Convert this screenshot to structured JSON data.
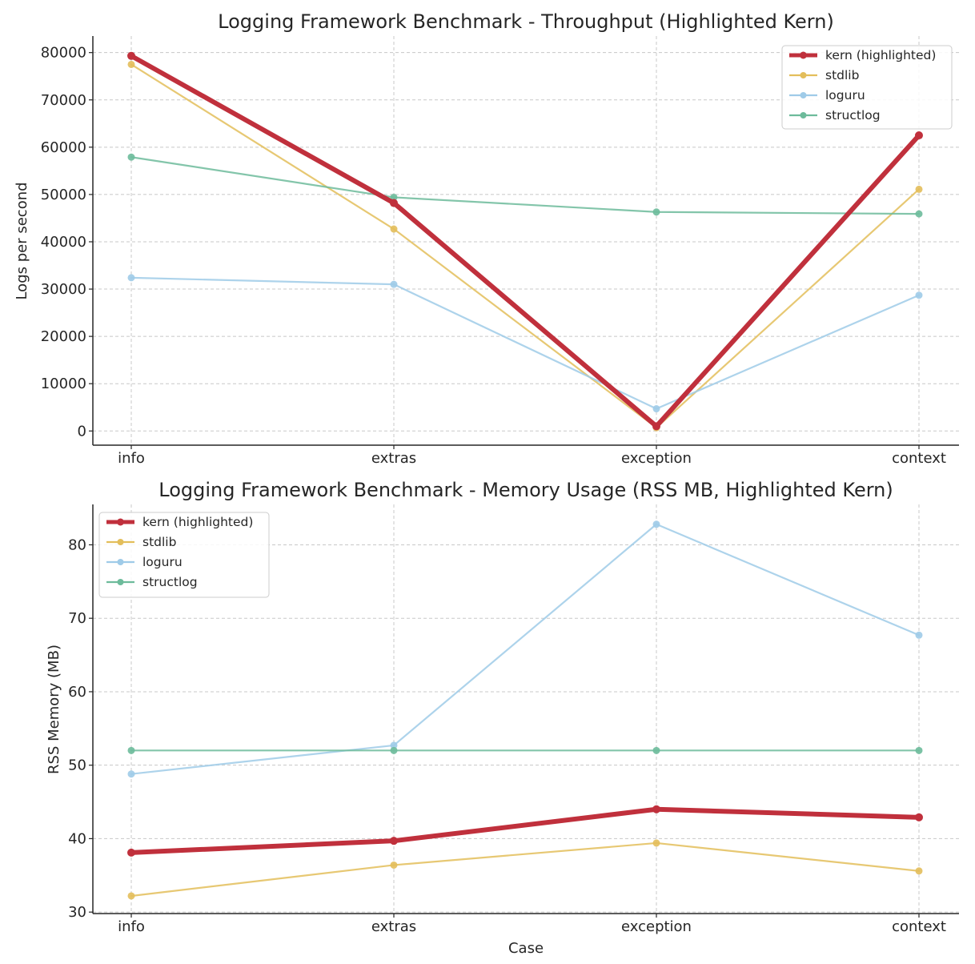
{
  "chart_data": [
    {
      "type": "line",
      "title": "Logging Framework Benchmark - Throughput (Highlighted Kern)",
      "xlabel": "",
      "ylabel": "Logs per second",
      "categories": [
        "info",
        "extras",
        "exception",
        "context"
      ],
      "ylim": [
        -3000,
        83500
      ],
      "yticks": [
        0,
        10000,
        20000,
        30000,
        40000,
        50000,
        60000,
        70000,
        80000
      ],
      "grid": true,
      "legend_position": "upper right",
      "series": [
        {
          "name": "kern (highlighted)",
          "values": [
            79300,
            48200,
            1000,
            62500
          ],
          "color": "#C0303C",
          "highlight": true
        },
        {
          "name": "stdlib",
          "values": [
            77500,
            42700,
            700,
            51100
          ],
          "color": "#E3BE5B",
          "highlight": false
        },
        {
          "name": "loguru",
          "values": [
            32400,
            31000,
            4700,
            28700
          ],
          "color": "#9FCBE8",
          "highlight": false
        },
        {
          "name": "structlog",
          "values": [
            57900,
            49400,
            46300,
            45900
          ],
          "color": "#6DBB9B",
          "highlight": false
        }
      ]
    },
    {
      "type": "line",
      "title": "Logging Framework Benchmark - Memory Usage (RSS MB, Highlighted Kern)",
      "xlabel": "Case",
      "ylabel": "RSS Memory (MB)",
      "categories": [
        "info",
        "extras",
        "exception",
        "context"
      ],
      "ylim": [
        29.8,
        85.5
      ],
      "yticks": [
        30,
        40,
        50,
        60,
        70,
        80
      ],
      "grid": true,
      "legend_position": "upper left",
      "series": [
        {
          "name": "kern (highlighted)",
          "values": [
            38.1,
            39.7,
            44.0,
            42.9
          ],
          "color": "#C0303C",
          "highlight": true
        },
        {
          "name": "stdlib",
          "values": [
            32.2,
            36.4,
            39.4,
            35.6
          ],
          "color": "#E3BE5B",
          "highlight": false
        },
        {
          "name": "loguru",
          "values": [
            48.8,
            52.7,
            82.8,
            67.7
          ],
          "color": "#9FCBE8",
          "highlight": false
        },
        {
          "name": "structlog",
          "values": [
            52.0,
            52.0,
            52.0,
            52.0
          ],
          "color": "#6DBB9B",
          "highlight": false
        }
      ]
    }
  ]
}
